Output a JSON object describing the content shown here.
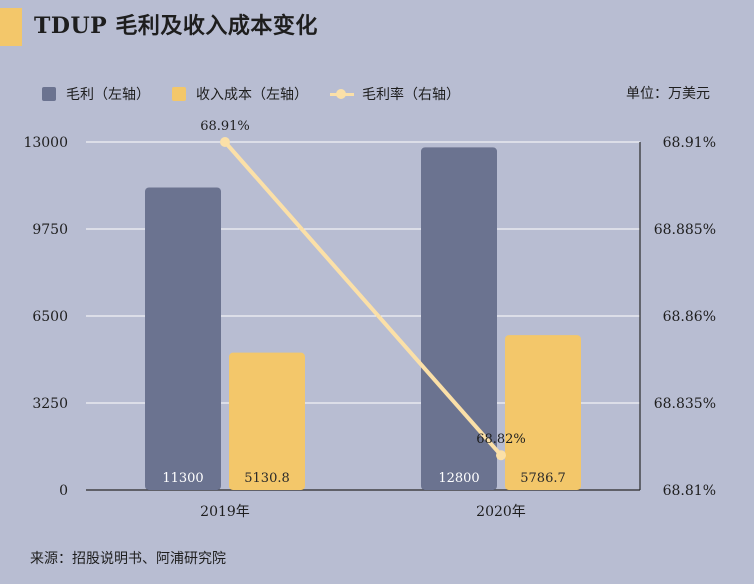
{
  "title": "TDUP 毛利及收入成本变化",
  "unit_label": "单位：万美元",
  "source": "来源：招股说明书、阿浦研究院",
  "legend": [
    {
      "label": "毛利（左轴）",
      "color": "#6b7390",
      "kind": "bar"
    },
    {
      "label": "收入成本（左轴）",
      "color": "#f3c76a",
      "kind": "bar"
    },
    {
      "label": "毛利率（右轴）",
      "color": "#fbe0a8",
      "kind": "line"
    }
  ],
  "chart_data": {
    "type": "bar",
    "categories": [
      "2019年",
      "2020年"
    ],
    "series": [
      {
        "name": "毛利（左轴）",
        "values": [
          11300,
          12800
        ],
        "color": "#6b7390",
        "axis": "left",
        "labels": [
          "11300",
          "12800"
        ]
      },
      {
        "name": "收入成本（左轴）",
        "values": [
          5130.8,
          5786.7
        ],
        "color": "#f3c76a",
        "axis": "left",
        "labels": [
          "5130.8",
          "5786.7"
        ]
      },
      {
        "name": "毛利率（右轴）",
        "type": "line",
        "values": [
          68.91,
          68.82
        ],
        "color": "#fbe0a8",
        "axis": "right",
        "labels": [
          "68.91%",
          "68.82%"
        ]
      }
    ],
    "y_left": {
      "ticks": [
        0,
        3250,
        6500,
        9750,
        13000
      ],
      "tick_labels": [
        "0",
        "3250",
        "6500",
        "9750",
        "13000"
      ],
      "ylim": [
        0,
        13000
      ]
    },
    "y_right": {
      "ticks": [
        68.81,
        68.835,
        68.86,
        68.885,
        68.91
      ],
      "tick_labels": [
        "68.81%",
        "68.835%",
        "68.86%",
        "68.885%",
        "68.91%"
      ],
      "ylim": [
        68.81,
        68.91
      ]
    },
    "grid": true,
    "legend_position": "top-left"
  }
}
